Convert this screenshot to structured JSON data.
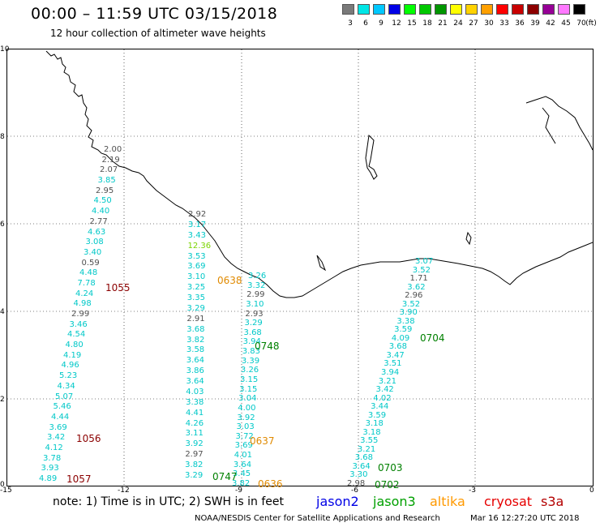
{
  "title": "00:00 – 11:59 UTC 03/15/2018",
  "subtitle": "12 hour collection of altimeter wave heights",
  "scale": {
    "unit": "(ft)",
    "bins": [
      {
        "label": "3",
        "color": "#7a7a7a"
      },
      {
        "label": "6",
        "color": "#00e6e6"
      },
      {
        "label": "9",
        "color": "#00c8ff"
      },
      {
        "label": "12",
        "color": "#0000e6"
      },
      {
        "label": "15",
        "color": "#00ff00"
      },
      {
        "label": "18",
        "color": "#00c800"
      },
      {
        "label": "21",
        "color": "#009600"
      },
      {
        "label": "24",
        "color": "#ffff00"
      },
      {
        "label": "27",
        "color": "#ffd200"
      },
      {
        "label": "30",
        "color": "#ffa000"
      },
      {
        "label": "33",
        "color": "#ff0000"
      },
      {
        "label": "36",
        "color": "#c80000"
      },
      {
        "label": "39",
        "color": "#8c0000"
      },
      {
        "label": "42",
        "color": "#960096"
      },
      {
        "label": "45",
        "color": "#ff78ff"
      },
      {
        "label": "70",
        "color": "#000000"
      }
    ]
  },
  "axes": {
    "y_ticks": [
      "10",
      "8",
      "6",
      "4",
      "2",
      "0"
    ],
    "x_ticks": [
      "-15",
      "-12",
      "-9",
      "-6",
      "-3",
      "0"
    ]
  },
  "colors": {
    "cyan": "#00c8c8",
    "gray": "#505050",
    "green": "#7ad400",
    "orange": "#e08a00",
    "dkgreen": "#008000",
    "dkred": "#8b0000"
  },
  "passes": [
    {
      "time": "1055",
      "color": "#8b0000"
    },
    {
      "time": "1056",
      "color": "#8b0000"
    },
    {
      "time": "1057",
      "color": "#8b0000"
    },
    {
      "time": "0638",
      "color": "#e08a00"
    },
    {
      "time": "0637",
      "color": "#e08a00"
    },
    {
      "time": "0636",
      "color": "#e08a00"
    },
    {
      "time": "0748",
      "color": "#008000"
    },
    {
      "time": "0747",
      "color": "#008000"
    },
    {
      "time": "0704",
      "color": "#008000"
    },
    {
      "time": "0703",
      "color": "#008000"
    },
    {
      "time": "0702",
      "color": "#008000"
    }
  ],
  "track1": {
    "values": [
      "2.00",
      "2.19",
      "2.07",
      "3.85",
      "2.95",
      "4.50",
      "4.40",
      "2.77",
      "4.63",
      "3.08",
      "3.40",
      "0.59",
      "4.48",
      "7.78",
      "4.24",
      "4.98",
      "2.99",
      "3.46",
      "4.54",
      "4.80",
      "4.19",
      "4.96",
      "5.23",
      "4.34",
      "5.07",
      "5.46",
      "4.44",
      "3.69",
      "3.42",
      "4.12",
      "3.78",
      "3.93",
      "4.89"
    ],
    "colors": [
      "gray",
      "gray",
      "gray",
      "cyan",
      "gray",
      "cyan",
      "cyan",
      "gray",
      "cyan",
      "cyan",
      "cyan",
      "gray",
      "cyan",
      "cyan",
      "cyan",
      "cyan",
      "gray",
      "cyan",
      "cyan",
      "cyan",
      "cyan",
      "cyan",
      "cyan",
      "cyan",
      "cyan",
      "cyan",
      "cyan",
      "cyan",
      "cyan",
      "cyan",
      "cyan",
      "cyan",
      "cyan"
    ]
  },
  "track2": {
    "values": [
      "2.92",
      "3.17",
      "3.43",
      "12.36",
      "3.53",
      "3.69",
      "3.10",
      "3.25",
      "3.35",
      "3.29",
      "2.91",
      "3.68",
      "3.82",
      "3.58",
      "3.64",
      "3.86",
      "3.64",
      "4.03",
      "3.38",
      "4.41",
      "4.26",
      "3.11",
      "3.92",
      "2.97",
      "3.82",
      "3.29"
    ],
    "colors": [
      "gray",
      "cyan",
      "cyan",
      "green",
      "cyan",
      "cyan",
      "cyan",
      "cyan",
      "cyan",
      "cyan",
      "gray",
      "cyan",
      "cyan",
      "cyan",
      "cyan",
      "cyan",
      "cyan",
      "cyan",
      "cyan",
      "cyan",
      "cyan",
      "cyan",
      "cyan",
      "gray",
      "cyan",
      "cyan"
    ]
  },
  "track3": {
    "values": [
      "3.26",
      "3.32",
      "2.99",
      "3.10",
      "2.93",
      "3.29",
      "3.68",
      "3.94",
      "3.83",
      "3.39",
      "3.26",
      "3.15",
      "3.15",
      "3.04",
      "4.00",
      "3.92",
      "3.03",
      "3.72",
      "3.69",
      "4.01",
      "3.64",
      "3.45",
      "3.82"
    ],
    "colors": [
      "cyan",
      "cyan",
      "gray",
      "cyan",
      "gray",
      "cyan",
      "cyan",
      "cyan",
      "cyan",
      "cyan",
      "cyan",
      "cyan",
      "cyan",
      "cyan",
      "cyan",
      "cyan",
      "cyan",
      "cyan",
      "cyan",
      "cyan",
      "cyan",
      "cyan",
      "cyan"
    ]
  },
  "track4": {
    "values": [
      "3.07",
      "3.52",
      "1.71",
      "3.62",
      "2.96",
      "3.52",
      "3.90",
      "3.38",
      "3.59",
      "4.09",
      "3.68",
      "3.47",
      "3.51",
      "3.94",
      "3.21",
      "3.42",
      "4.02",
      "3.44",
      "3.59",
      "3.18",
      "3.18",
      "3.55",
      "3.21",
      "3.68",
      "3.64",
      "3.30",
      "2.98"
    ],
    "colors": [
      "cyan",
      "cyan",
      "gray",
      "cyan",
      "gray",
      "cyan",
      "cyan",
      "cyan",
      "cyan",
      "cyan",
      "cyan",
      "cyan",
      "cyan",
      "cyan",
      "cyan",
      "cyan",
      "cyan",
      "cyan",
      "cyan",
      "cyan",
      "cyan",
      "cyan",
      "cyan",
      "cyan",
      "cyan",
      "cyan",
      "gray"
    ]
  },
  "note": "note:  1) Time is in UTC;  2) SWH is in feet",
  "satellites": [
    {
      "name": "jason2",
      "color": "#0000e6"
    },
    {
      "name": "jason3",
      "color": "#00a000"
    },
    {
      "name": "altika",
      "color": "#ff9900"
    },
    {
      "name": "cryosat",
      "color": "#e60000"
    },
    {
      "name": "s3a",
      "color": "#b40000"
    }
  ],
  "credit": "NOAA/NESDIS Center for Satellite Applications and Research",
  "timestamp": "Mar 16 12:27:20 UTC 2018"
}
